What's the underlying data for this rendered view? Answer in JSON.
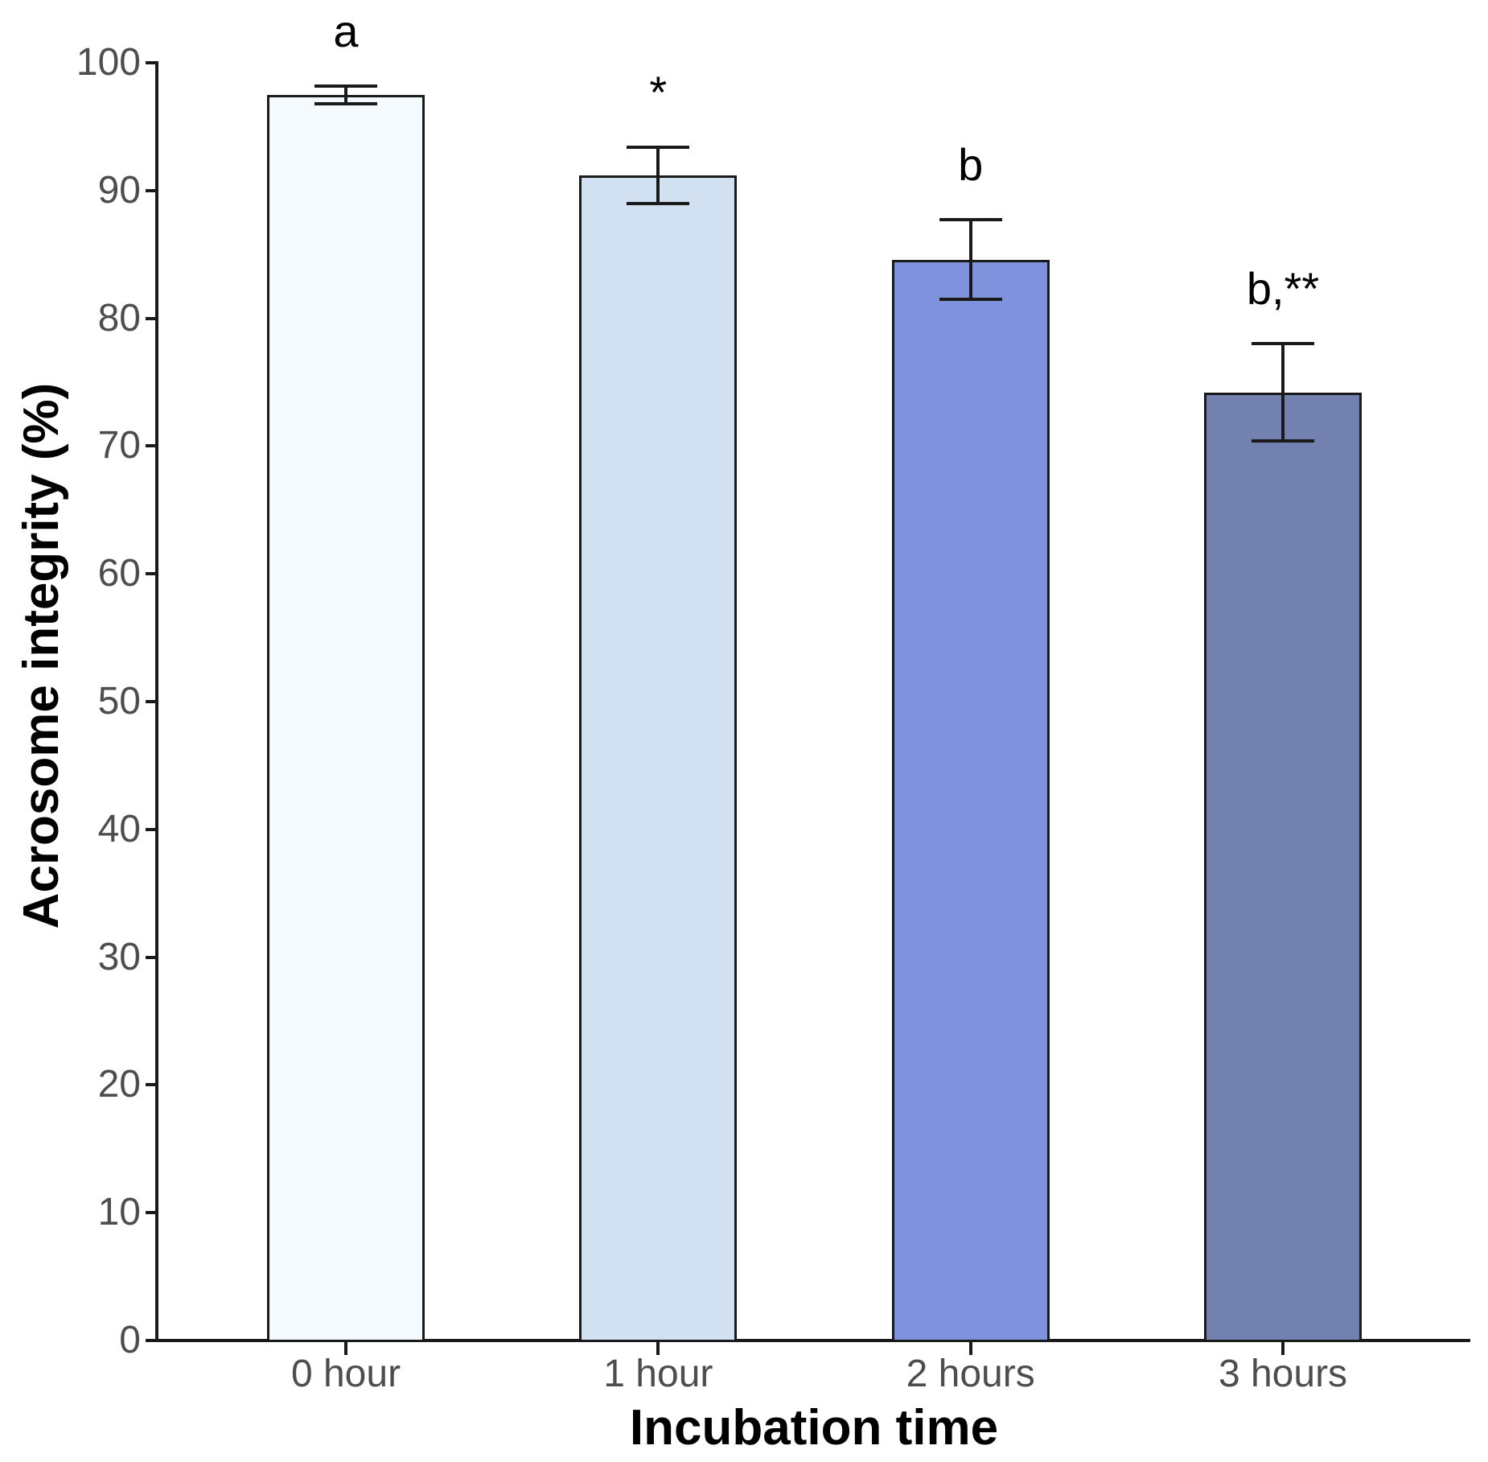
{
  "figure": {
    "background_color": "#FFFFFF"
  },
  "chart_data": {
    "type": "bar",
    "title": "",
    "xlabel": "Incubation time",
    "ylabel": "Acrosome integrity (%)",
    "categories": [
      "0 hour",
      "1 hour",
      "2 hours",
      "3 hours"
    ],
    "values": [
      97.5,
      91.2,
      84.6,
      74.2
    ],
    "errors": [
      0.7,
      2.2,
      3.1,
      3.8
    ],
    "annotations": [
      "a",
      "*",
      "b",
      "b,**"
    ],
    "ylim": [
      0,
      100
    ],
    "yticks": [
      0,
      10,
      20,
      30,
      40,
      50,
      60,
      70,
      80,
      90,
      100
    ],
    "grid": "off",
    "legend": "none",
    "bar_fill_colors": [
      "#F5FAFE",
      "#D2E1F2",
      "#7E92DE",
      "#7381B0"
    ],
    "bar_outline_color": "#1A1A1A",
    "axis_color": "#1A1A1A",
    "tick_label_color": "#4D4D4D",
    "annotation_color": "#000000"
  }
}
